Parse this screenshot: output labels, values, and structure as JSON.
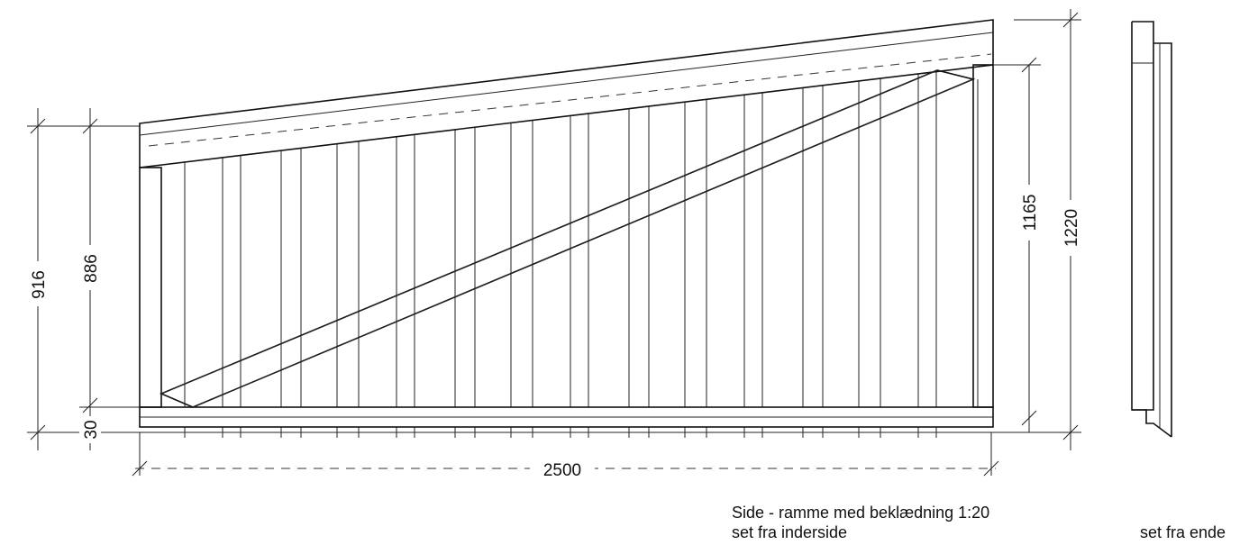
{
  "dimensions": {
    "height_left_outer": "916",
    "height_left_inner": "886",
    "bottom_offset": "30",
    "width": "2500",
    "height_right_inner": "1165",
    "height_right_outer": "1220"
  },
  "captions": {
    "main_title": "Side - ramme med beklædning 1:20",
    "main_subtitle": "set fra inderside",
    "end_view": "set fra ende"
  }
}
